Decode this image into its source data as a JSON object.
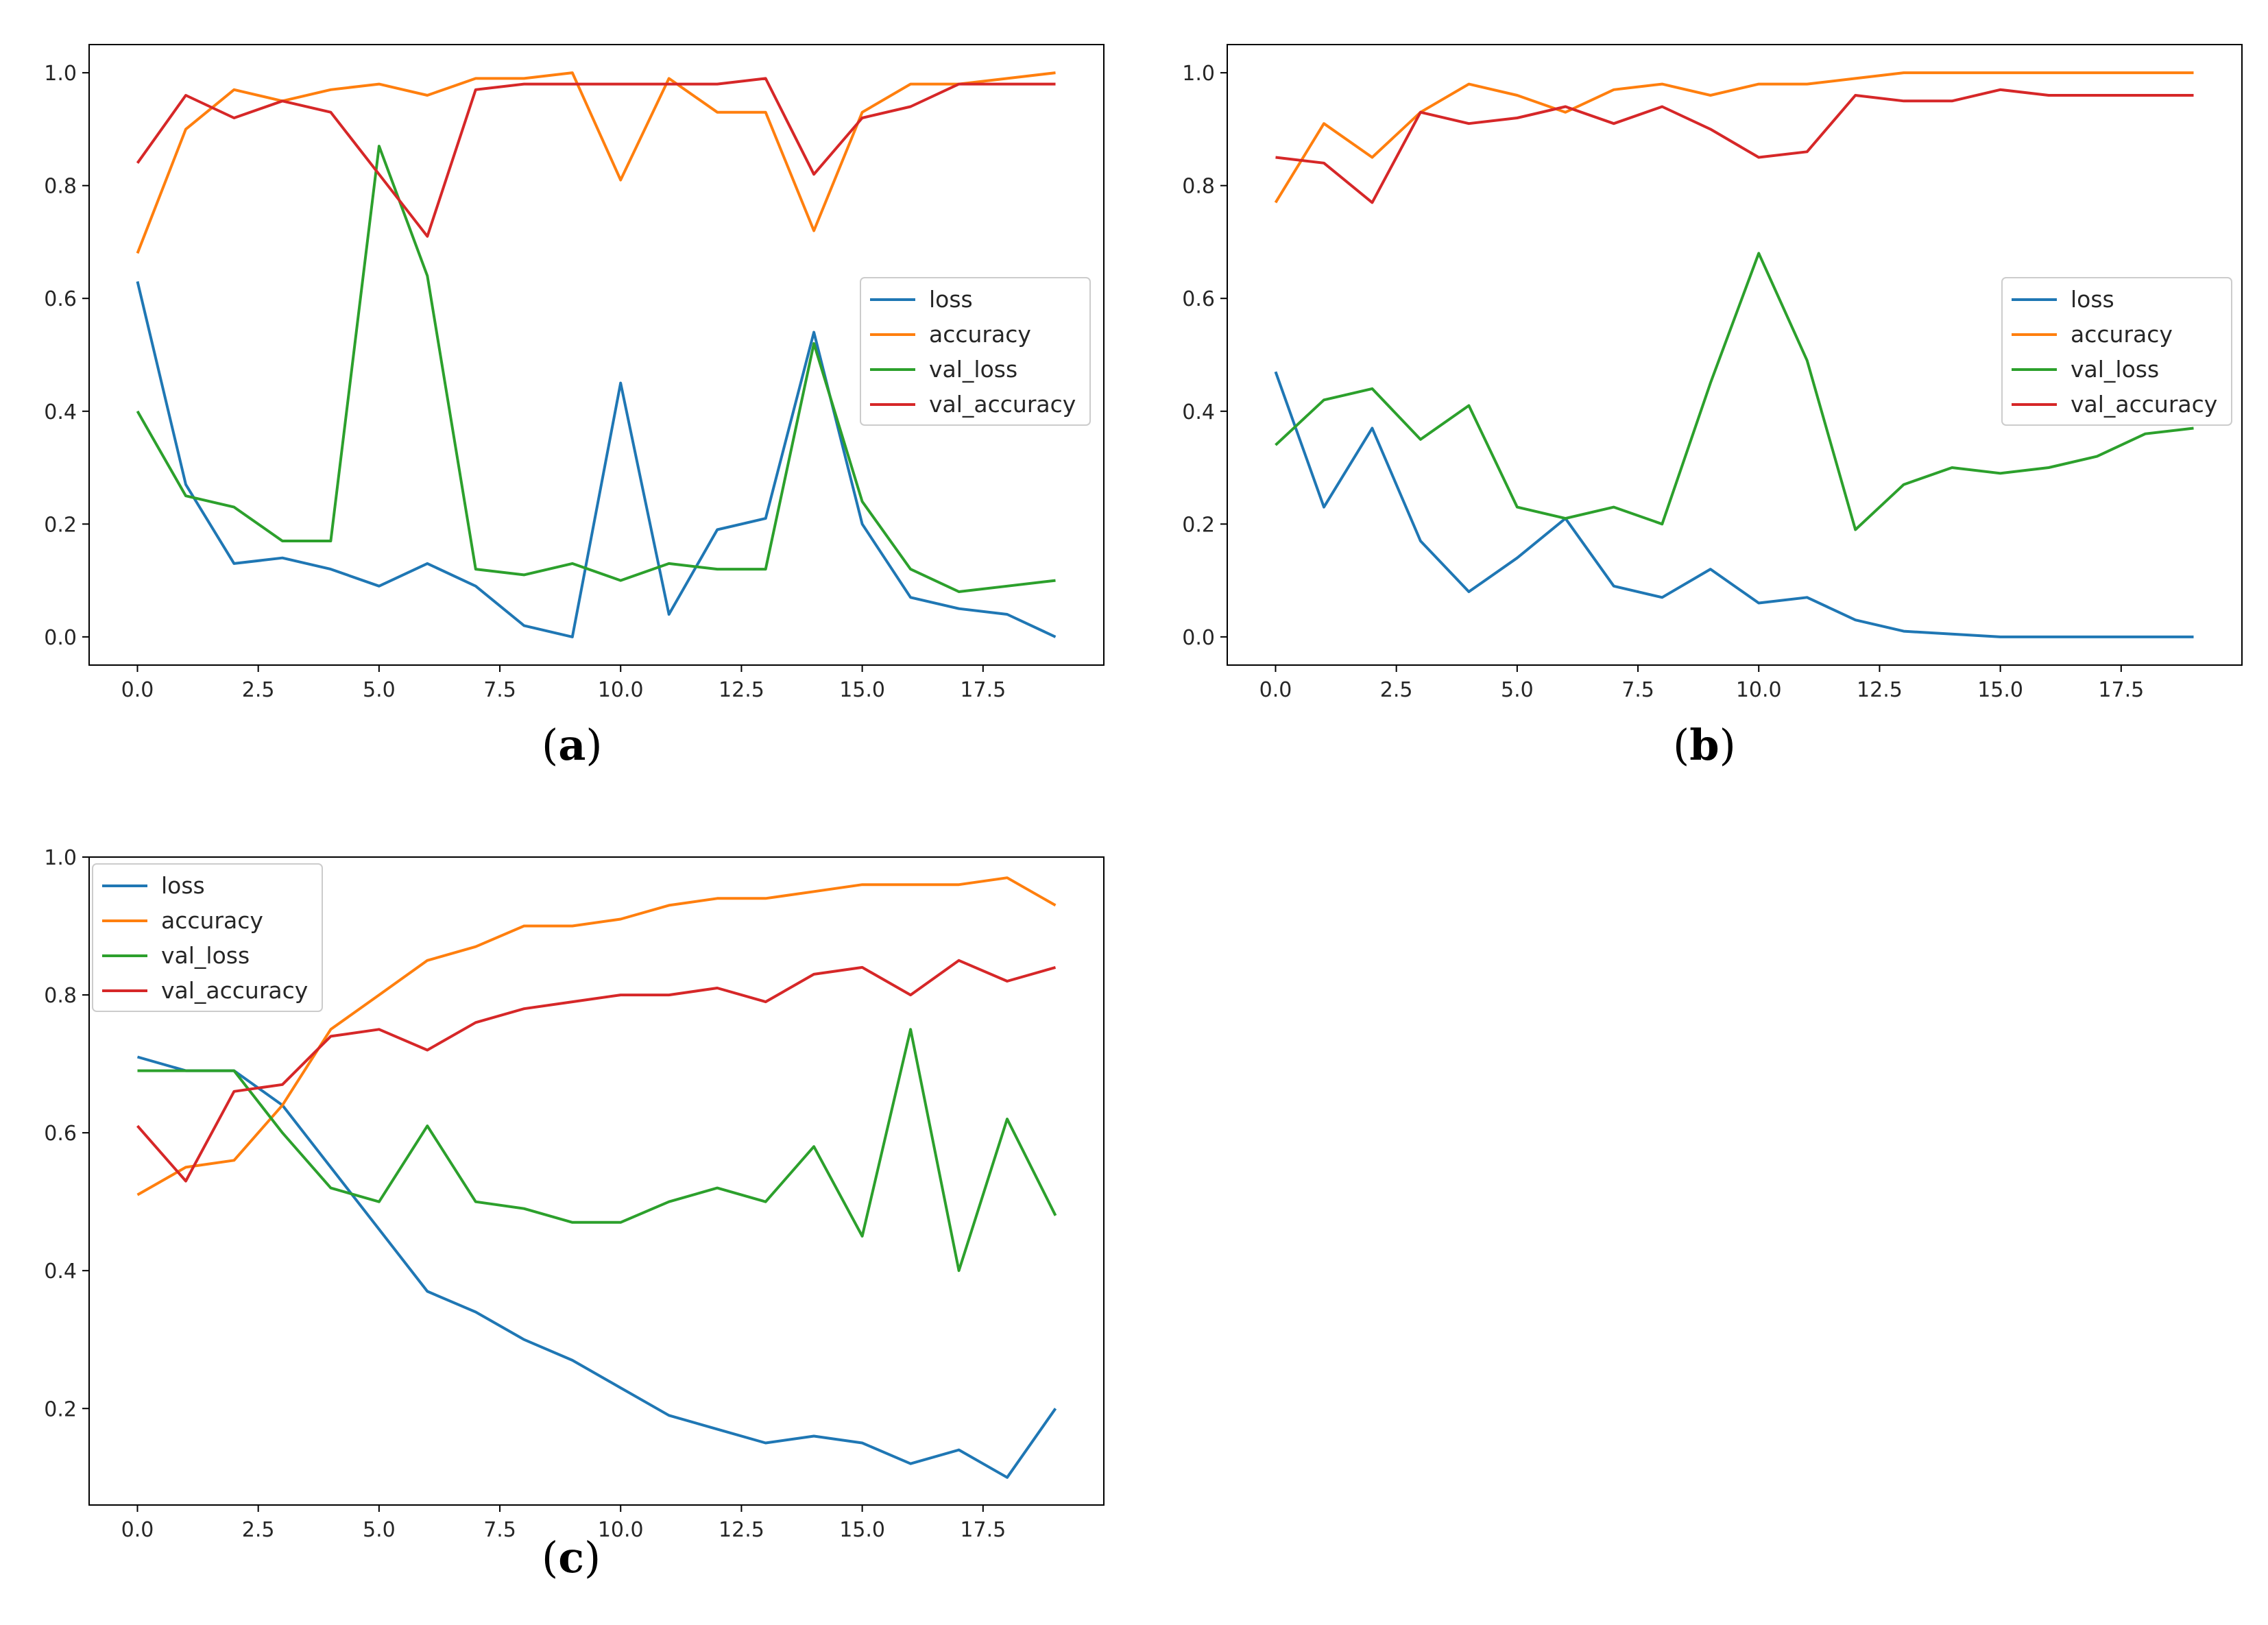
{
  "chart_data": [
    {
      "type": "line",
      "panel": "a",
      "caption": "a",
      "x": [
        0,
        1,
        2,
        3,
        4,
        5,
        6,
        7,
        8,
        9,
        10,
        11,
        12,
        13,
        14,
        15,
        16,
        17,
        18,
        19
      ],
      "xlim": [
        -1,
        20
      ],
      "ylim": [
        -0.05,
        1.05
      ],
      "xticks": [
        "0.0",
        "2.5",
        "5.0",
        "7.5",
        "10.0",
        "12.5",
        "15.0",
        "17.5"
      ],
      "xtick_values": [
        0,
        2.5,
        5,
        7.5,
        10,
        12.5,
        15,
        17.5
      ],
      "yticks": [
        "0.0",
        "0.2",
        "0.4",
        "0.6",
        "0.8",
        "1.0"
      ],
      "ytick_values": [
        0,
        0.2,
        0.4,
        0.6,
        0.8,
        1.0
      ],
      "legend_position": "center-right",
      "series": [
        {
          "name": "loss",
          "color": "#1f77b4",
          "values": [
            0.63,
            0.27,
            0.13,
            0.14,
            0.12,
            0.09,
            0.13,
            0.09,
            0.02,
            0.0,
            0.45,
            0.04,
            0.19,
            0.21,
            0.54,
            0.2,
            0.07,
            0.05,
            0.04,
            0.0
          ]
        },
        {
          "name": "accuracy",
          "color": "#ff7f0e",
          "values": [
            0.68,
            0.9,
            0.97,
            0.95,
            0.97,
            0.98,
            0.96,
            0.99,
            0.99,
            1.0,
            0.81,
            0.99,
            0.93,
            0.93,
            0.72,
            0.93,
            0.98,
            0.98,
            0.99,
            1.0
          ]
        },
        {
          "name": "val_loss",
          "color": "#2ca02c",
          "values": [
            0.4,
            0.25,
            0.23,
            0.17,
            0.17,
            0.87,
            0.64,
            0.12,
            0.11,
            0.13,
            0.1,
            0.13,
            0.12,
            0.12,
            0.52,
            0.24,
            0.12,
            0.08,
            0.09,
            0.1
          ]
        },
        {
          "name": "val_accuracy",
          "color": "#d62728",
          "values": [
            0.84,
            0.96,
            0.92,
            0.95,
            0.93,
            0.82,
            0.71,
            0.97,
            0.98,
            0.98,
            0.98,
            0.98,
            0.98,
            0.99,
            0.82,
            0.92,
            0.94,
            0.98,
            0.98,
            0.98
          ]
        }
      ]
    },
    {
      "type": "line",
      "panel": "b",
      "caption": "b",
      "x": [
        0,
        1,
        2,
        3,
        4,
        5,
        6,
        7,
        8,
        9,
        10,
        11,
        12,
        13,
        14,
        15,
        16,
        17,
        18,
        19
      ],
      "xlim": [
        -1,
        20
      ],
      "ylim": [
        -0.05,
        1.05
      ],
      "xticks": [
        "0.0",
        "2.5",
        "5.0",
        "7.5",
        "10.0",
        "12.5",
        "15.0",
        "17.5"
      ],
      "xtick_values": [
        0,
        2.5,
        5,
        7.5,
        10,
        12.5,
        15,
        17.5
      ],
      "yticks": [
        "0.0",
        "0.2",
        "0.4",
        "0.6",
        "0.8",
        "1.0"
      ],
      "ytick_values": [
        0,
        0.2,
        0.4,
        0.6,
        0.8,
        1.0
      ],
      "legend_position": "center-right",
      "series": [
        {
          "name": "loss",
          "color": "#1f77b4",
          "values": [
            0.47,
            0.23,
            0.37,
            0.17,
            0.08,
            0.14,
            0.21,
            0.09,
            0.07,
            0.12,
            0.06,
            0.07,
            0.03,
            0.01,
            0.005,
            0.0,
            0.0,
            0.0,
            0.0,
            0.0
          ]
        },
        {
          "name": "accuracy",
          "color": "#ff7f0e",
          "values": [
            0.77,
            0.91,
            0.85,
            0.93,
            0.98,
            0.96,
            0.93,
            0.97,
            0.98,
            0.96,
            0.98,
            0.98,
            0.99,
            1.0,
            1.0,
            1.0,
            1.0,
            1.0,
            1.0,
            1.0
          ]
        },
        {
          "name": "val_loss",
          "color": "#2ca02c",
          "values": [
            0.34,
            0.42,
            0.44,
            0.35,
            0.41,
            0.23,
            0.21,
            0.23,
            0.2,
            0.45,
            0.68,
            0.49,
            0.19,
            0.27,
            0.3,
            0.29,
            0.3,
            0.32,
            0.36,
            0.37
          ]
        },
        {
          "name": "val_accuracy",
          "color": "#d62728",
          "values": [
            0.85,
            0.84,
            0.77,
            0.93,
            0.91,
            0.92,
            0.94,
            0.91,
            0.94,
            0.9,
            0.85,
            0.86,
            0.96,
            0.95,
            0.95,
            0.97,
            0.96,
            0.96,
            0.96,
            0.96
          ]
        }
      ]
    },
    {
      "type": "line",
      "panel": "c",
      "caption": "c",
      "x": [
        0,
        1,
        2,
        3,
        4,
        5,
        6,
        7,
        8,
        9,
        10,
        11,
        12,
        13,
        14,
        15,
        16,
        17,
        18,
        19
      ],
      "xlim": [
        -1,
        20
      ],
      "ylim": [
        0.06,
        1.0
      ],
      "xticks": [
        "0.0",
        "2.5",
        "5.0",
        "7.5",
        "10.0",
        "12.5",
        "15.0",
        "17.5"
      ],
      "xtick_values": [
        0,
        2.5,
        5,
        7.5,
        10,
        12.5,
        15,
        17.5
      ],
      "yticks": [
        "0.2",
        "0.4",
        "0.6",
        "0.8",
        "1.0"
      ],
      "ytick_values": [
        0.2,
        0.4,
        0.6,
        0.8,
        1.0
      ],
      "legend_position": "upper-left",
      "series": [
        {
          "name": "loss",
          "color": "#1f77b4",
          "values": [
            0.71,
            0.69,
            0.69,
            0.64,
            0.55,
            0.46,
            0.37,
            0.34,
            0.3,
            0.27,
            0.23,
            0.19,
            0.17,
            0.15,
            0.16,
            0.15,
            0.12,
            0.14,
            0.1,
            0.2
          ]
        },
        {
          "name": "accuracy",
          "color": "#ff7f0e",
          "values": [
            0.51,
            0.55,
            0.56,
            0.64,
            0.75,
            0.8,
            0.85,
            0.87,
            0.9,
            0.9,
            0.91,
            0.93,
            0.94,
            0.94,
            0.95,
            0.96,
            0.96,
            0.96,
            0.97,
            0.93
          ]
        },
        {
          "name": "val_loss",
          "color": "#2ca02c",
          "values": [
            0.69,
            0.69,
            0.69,
            0.6,
            0.52,
            0.5,
            0.61,
            0.5,
            0.49,
            0.47,
            0.47,
            0.5,
            0.52,
            0.5,
            0.58,
            0.45,
            0.75,
            0.4,
            0.62,
            0.48
          ]
        },
        {
          "name": "val_accuracy",
          "color": "#d62728",
          "values": [
            0.61,
            0.53,
            0.66,
            0.67,
            0.74,
            0.75,
            0.72,
            0.76,
            0.78,
            0.79,
            0.8,
            0.8,
            0.81,
            0.79,
            0.83,
            0.84,
            0.8,
            0.85,
            0.82,
            0.84
          ]
        }
      ]
    }
  ]
}
